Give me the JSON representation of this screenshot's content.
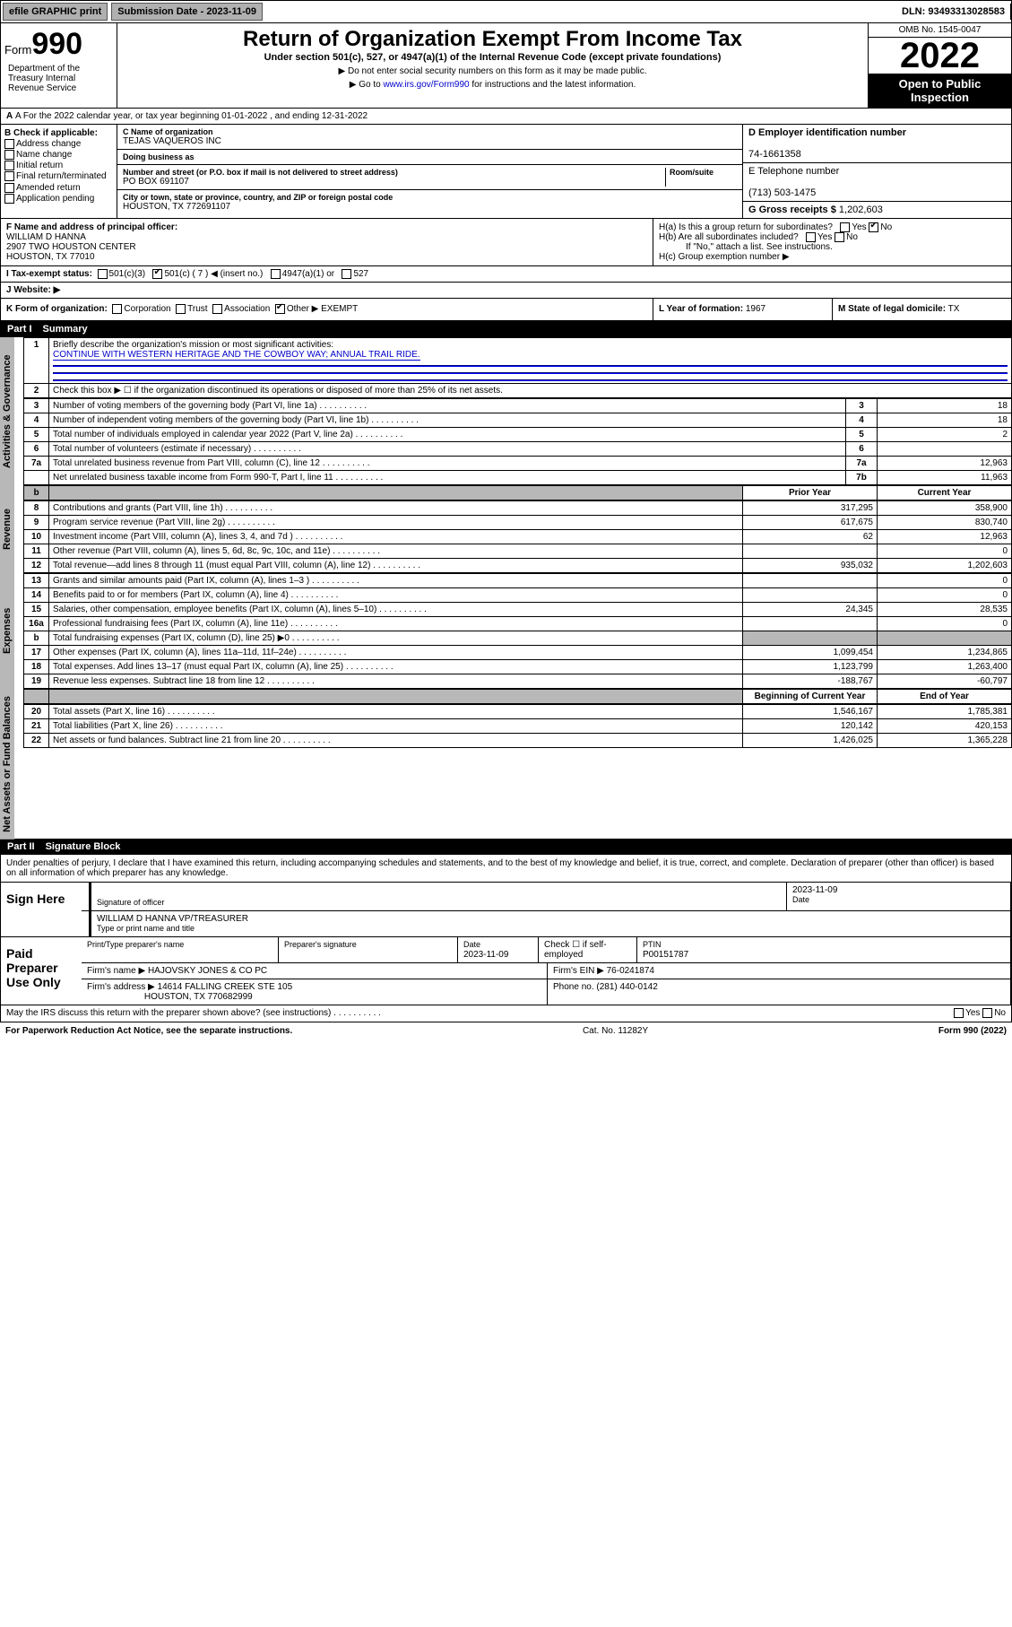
{
  "topbar": {
    "efile": "efile GRAPHIC print",
    "submission_label": "Submission Date - 2023-11-09",
    "dln": "DLN: 93493313028583"
  },
  "header": {
    "form_prefix": "Form",
    "form_number": "990",
    "title": "Return of Organization Exempt From Income Tax",
    "subtitle": "Under section 501(c), 527, or 4947(a)(1) of the Internal Revenue Code (except private foundations)",
    "note1": "▶ Do not enter social security numbers on this form as it may be made public.",
    "note2_pre": "▶ Go to ",
    "note2_link": "www.irs.gov/Form990",
    "note2_post": " for instructions and the latest information.",
    "omb": "OMB No. 1545-0047",
    "year": "2022",
    "open_public": "Open to Public Inspection",
    "dept": "Department of the Treasury Internal Revenue Service"
  },
  "line_a": "A For the 2022 calendar year, or tax year beginning 01-01-2022   , and ending 12-31-2022",
  "box_b": {
    "title": "B Check if applicable:",
    "opts": [
      "Address change",
      "Name change",
      "Initial return",
      "Final return/terminated",
      "Amended return",
      "Application pending"
    ]
  },
  "box_c": {
    "name_label": "C Name of organization",
    "name": "TEJAS VAQUEROS INC",
    "dba_label": "Doing business as",
    "dba": "",
    "addr_label": "Number and street (or P.O. box if mail is not delivered to street address)",
    "room_label": "Room/suite",
    "addr": "PO BOX 691107",
    "city_label": "City or town, state or province, country, and ZIP or foreign postal code",
    "city": "HOUSTON, TX  772691107"
  },
  "box_d": {
    "label": "D Employer identification number",
    "val": "74-1661358"
  },
  "box_e": {
    "label": "E Telephone number",
    "val": "(713) 503-1475"
  },
  "box_g": {
    "label": "G Gross receipts $",
    "val": "1,202,603"
  },
  "box_f": {
    "label": "F Name and address of principal officer:",
    "name": "WILLIAM D HANNA",
    "addr1": "2907 TWO HOUSTON CENTER",
    "addr2": "HOUSTON, TX  77010"
  },
  "box_h": {
    "a": "H(a)  Is this a group return for subordinates?",
    "b": "H(b)  Are all subordinates included?",
    "bnote": "If \"No,\" attach a list. See instructions.",
    "c": "H(c)  Group exemption number ▶"
  },
  "box_i": {
    "label": "I   Tax-exempt status:",
    "c3": "501(c)(3)",
    "c": "501(c) ( 7 ) ◀ (insert no.)",
    "a1": "4947(a)(1) or",
    "527": "527"
  },
  "box_j": {
    "label": "J   Website: ▶",
    "val": ""
  },
  "box_k": {
    "label": "K Form of organization:",
    "corp": "Corporation",
    "trust": "Trust",
    "assoc": "Association",
    "other": "Other ▶",
    "other_val": "EXEMPT"
  },
  "box_l": {
    "label": "L Year of formation:",
    "val": "1967"
  },
  "box_m": {
    "label": "M State of legal domicile:",
    "val": "TX"
  },
  "part1": {
    "header_num": "Part I",
    "header_title": "Summary",
    "q1": "Briefly describe the organization's mission or most significant activities:",
    "q1_ans": "CONTINUE WITH WESTERN HERITAGE AND THE COWBOY WAY; ANNUAL TRAIL RIDE.",
    "q2": "Check this box ▶ ☐  if the organization discontinued its operations or disposed of more than 25% of its net assets."
  },
  "vtabs": {
    "gov": "Activities & Governance",
    "rev": "Revenue",
    "exp": "Expenses",
    "net": "Net Assets or Fund Balances"
  },
  "gov_rows": [
    {
      "n": "3",
      "d": "Number of voting members of the governing body (Part VI, line 1a)",
      "c": "3",
      "v": "18"
    },
    {
      "n": "4",
      "d": "Number of independent voting members of the governing body (Part VI, line 1b)",
      "c": "4",
      "v": "18"
    },
    {
      "n": "5",
      "d": "Total number of individuals employed in calendar year 2022 (Part V, line 2a)",
      "c": "5",
      "v": "2"
    },
    {
      "n": "6",
      "d": "Total number of volunteers (estimate if necessary)",
      "c": "6",
      "v": ""
    },
    {
      "n": "7a",
      "d": "Total unrelated business revenue from Part VIII, column (C), line 12",
      "c": "7a",
      "v": "12,963"
    },
    {
      "n": "",
      "d": "Net unrelated business taxable income from Form 990-T, Part I, line 11",
      "c": "7b",
      "v": "11,963"
    }
  ],
  "yr_hdr": {
    "b": "b",
    "prior": "Prior Year",
    "current": "Current Year"
  },
  "rev_rows": [
    {
      "n": "8",
      "d": "Contributions and grants (Part VIII, line 1h)",
      "p": "317,295",
      "c": "358,900"
    },
    {
      "n": "9",
      "d": "Program service revenue (Part VIII, line 2g)",
      "p": "617,675",
      "c": "830,740"
    },
    {
      "n": "10",
      "d": "Investment income (Part VIII, column (A), lines 3, 4, and 7d )",
      "p": "62",
      "c": "12,963"
    },
    {
      "n": "11",
      "d": "Other revenue (Part VIII, column (A), lines 5, 6d, 8c, 9c, 10c, and 11e)",
      "p": "",
      "c": "0"
    },
    {
      "n": "12",
      "d": "Total revenue—add lines 8 through 11 (must equal Part VIII, column (A), line 12)",
      "p": "935,032",
      "c": "1,202,603"
    }
  ],
  "exp_rows": [
    {
      "n": "13",
      "d": "Grants and similar amounts paid (Part IX, column (A), lines 1–3 )",
      "p": "",
      "c": "0"
    },
    {
      "n": "14",
      "d": "Benefits paid to or for members (Part IX, column (A), line 4)",
      "p": "",
      "c": "0"
    },
    {
      "n": "15",
      "d": "Salaries, other compensation, employee benefits (Part IX, column (A), lines 5–10)",
      "p": "24,345",
      "c": "28,535"
    },
    {
      "n": "16a",
      "d": "Professional fundraising fees (Part IX, column (A), line 11e)",
      "p": "",
      "c": "0"
    },
    {
      "n": "b",
      "d": "Total fundraising expenses (Part IX, column (D), line 25) ▶0",
      "p": "",
      "c": "",
      "shaded": true
    },
    {
      "n": "17",
      "d": "Other expenses (Part IX, column (A), lines 11a–11d, 11f–24e)",
      "p": "1,099,454",
      "c": "1,234,865"
    },
    {
      "n": "18",
      "d": "Total expenses. Add lines 13–17 (must equal Part IX, column (A), line 25)",
      "p": "1,123,799",
      "c": "1,263,400"
    },
    {
      "n": "19",
      "d": "Revenue less expenses. Subtract line 18 from line 12",
      "p": "-188,767",
      "c": "-60,797"
    }
  ],
  "net_hdr": {
    "b": "Beginning of Current Year",
    "e": "End of Year"
  },
  "net_rows": [
    {
      "n": "20",
      "d": "Total assets (Part X, line 16)",
      "p": "1,546,167",
      "c": "1,785,381"
    },
    {
      "n": "21",
      "d": "Total liabilities (Part X, line 26)",
      "p": "120,142",
      "c": "420,153"
    },
    {
      "n": "22",
      "d": "Net assets or fund balances. Subtract line 21 from line 20",
      "p": "1,426,025",
      "c": "1,365,228"
    }
  ],
  "part2": {
    "header_num": "Part II",
    "header_title": "Signature Block",
    "penalty": "Under penalties of perjury, I declare that I have examined this return, including accompanying schedules and statements, and to the best of my knowledge and belief, it is true, correct, and complete. Declaration of preparer (other than officer) is based on all information of which preparer has any knowledge."
  },
  "sign": {
    "here": "Sign Here",
    "sig_label": "Signature of officer",
    "date_label": "Date",
    "date": "2023-11-09",
    "name": "WILLIAM D HANNA  VP/TREASURER",
    "name_label": "Type or print name and title"
  },
  "paid": {
    "title": "Paid Preparer Use Only",
    "h1": "Print/Type preparer's name",
    "h2": "Preparer's signature",
    "h3_label": "Date",
    "h3": "2023-11-09",
    "h4": "Check ☐ if self-employed",
    "h5_label": "PTIN",
    "h5": "P00151787",
    "firm_label": "Firm's name    ▶",
    "firm": "HAJOVSKY JONES & CO PC",
    "ein_label": "Firm's EIN ▶",
    "ein": "76-0241874",
    "addr_label": "Firm's address ▶",
    "addr1": "14614 FALLING CREEK STE 105",
    "addr2": "HOUSTON, TX  770682999",
    "phone_label": "Phone no.",
    "phone": "(281) 440-0142"
  },
  "may_irs": "May the IRS discuss this return with the preparer shown above? (see instructions)",
  "footer": {
    "left": "For Paperwork Reduction Act Notice, see the separate instructions.",
    "mid": "Cat. No. 11282Y",
    "right": "Form 990 (2022)"
  }
}
